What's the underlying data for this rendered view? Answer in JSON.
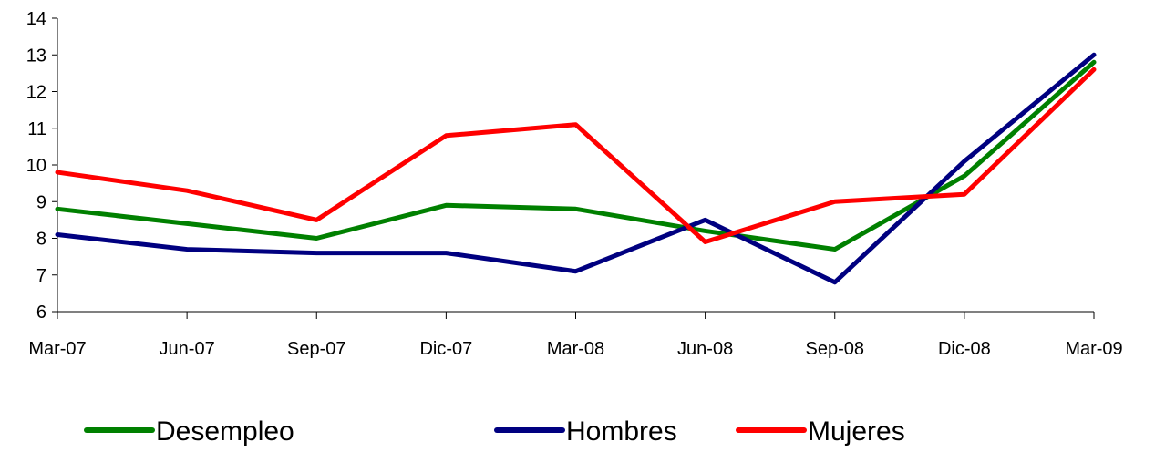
{
  "chart_data": {
    "type": "line",
    "categories": [
      "Mar-07",
      "Jun-07",
      "Sep-07",
      "Dic-07",
      "Mar-08",
      "Jun-08",
      "Sep-08",
      "Dic-08",
      "Mar-09"
    ],
    "series": [
      {
        "name": "Desempleo",
        "color": "#008000",
        "values": [
          8.8,
          8.4,
          8.0,
          8.9,
          8.8,
          8.2,
          7.7,
          9.7,
          12.8
        ]
      },
      {
        "name": "Hombres",
        "color": "#000080",
        "values": [
          8.1,
          7.7,
          7.6,
          7.6,
          7.1,
          8.5,
          6.8,
          10.1,
          13.0
        ]
      },
      {
        "name": "Mujeres",
        "color": "#ff0000",
        "values": [
          9.8,
          9.3,
          8.5,
          10.8,
          11.1,
          7.9,
          9.0,
          9.2,
          12.6
        ]
      }
    ],
    "ylim": [
      6,
      14
    ],
    "yticks": [
      "6",
      "7",
      "8",
      "9",
      "10",
      "11",
      "12",
      "13",
      "14"
    ],
    "grid": false,
    "legend_position": "bottom"
  }
}
